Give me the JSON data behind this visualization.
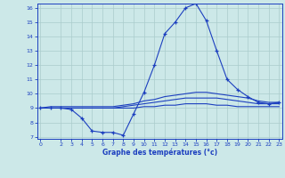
{
  "hours": [
    0,
    1,
    2,
    3,
    4,
    5,
    6,
    7,
    8,
    9,
    10,
    11,
    12,
    13,
    14,
    15,
    16,
    17,
    18,
    19,
    20,
    21,
    22,
    23
  ],
  "temp_main": [
    9.0,
    9.0,
    9.0,
    8.9,
    8.3,
    7.4,
    7.3,
    7.3,
    7.1,
    8.6,
    10.1,
    12.0,
    14.2,
    15.0,
    16.0,
    16.3,
    15.1,
    13.0,
    11.0,
    10.3,
    9.8,
    9.4,
    9.3,
    9.4
  ],
  "temp_line2": [
    9.0,
    9.1,
    9.1,
    9.1,
    9.1,
    9.1,
    9.1,
    9.1,
    9.2,
    9.3,
    9.5,
    9.6,
    9.8,
    9.9,
    10.0,
    10.1,
    10.1,
    10.0,
    9.9,
    9.8,
    9.7,
    9.5,
    9.4,
    9.4
  ],
  "temp_line3": [
    9.0,
    9.0,
    9.0,
    9.0,
    9.0,
    9.0,
    9.0,
    9.0,
    9.1,
    9.2,
    9.3,
    9.4,
    9.5,
    9.6,
    9.7,
    9.7,
    9.7,
    9.7,
    9.6,
    9.5,
    9.4,
    9.3,
    9.3,
    9.3
  ],
  "temp_line4": [
    9.0,
    9.0,
    9.0,
    9.0,
    9.0,
    9.0,
    9.0,
    9.0,
    9.0,
    9.0,
    9.1,
    9.1,
    9.2,
    9.2,
    9.3,
    9.3,
    9.3,
    9.2,
    9.2,
    9.1,
    9.1,
    9.1,
    9.1,
    9.1
  ],
  "line_color": "#1c3fbf",
  "bg_color": "#cce8e8",
  "grid_color": "#aacccc",
  "xlabel": "Graphe des températures (°c)",
  "xlim": [
    0,
    23
  ],
  "ylim": [
    7,
    16
  ],
  "yticks": [
    7,
    8,
    9,
    10,
    11,
    12,
    13,
    14,
    15,
    16
  ],
  "xticks": [
    0,
    2,
    3,
    4,
    5,
    6,
    7,
    8,
    9,
    10,
    11,
    12,
    13,
    14,
    15,
    16,
    17,
    18,
    19,
    20,
    21,
    22,
    23
  ]
}
